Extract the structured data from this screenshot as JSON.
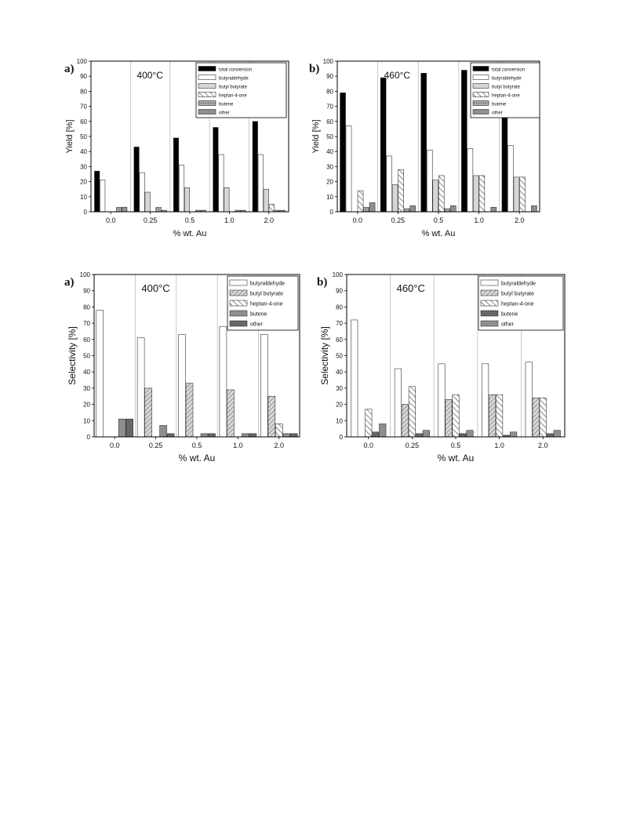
{
  "chart_data": [
    {
      "panel": "a)",
      "type": "bar",
      "annotation": "400°C",
      "xlabel": "% wt. Au",
      "ylabel": "Yield [%]",
      "ylim": [
        0,
        100
      ],
      "yticks": [
        0,
        10,
        20,
        30,
        40,
        50,
        60,
        70,
        80,
        90,
        100
      ],
      "categories": [
        "0.0",
        "0.25",
        "0.5",
        "1.0",
        "2.0"
      ],
      "legend_position": "top-right",
      "series": [
        {
          "name": "total conversion",
          "pattern": "black",
          "values": [
            27,
            43,
            49,
            56,
            60
          ]
        },
        {
          "name": "butyraldehyde",
          "pattern": "white",
          "values": [
            21,
            26,
            31,
            38,
            38
          ]
        },
        {
          "name": "butyl butyrate",
          "pattern": "lightgray",
          "values": [
            0,
            13,
            16,
            16,
            15
          ]
        },
        {
          "name": "heptan-4-one",
          "pattern": "hatch",
          "values": [
            0,
            0,
            0,
            0,
            5
          ]
        },
        {
          "name": "butene",
          "pattern": "dots",
          "values": [
            3,
            3,
            1,
            1,
            1
          ]
        },
        {
          "name": "other",
          "pattern": "gray",
          "values": [
            3,
            1,
            1,
            1,
            1
          ]
        }
      ]
    },
    {
      "panel": "b)",
      "type": "bar",
      "annotation": "460°C",
      "xlabel": "% wt. Au",
      "ylabel": "Yield [%]",
      "ylim": [
        0,
        100
      ],
      "yticks": [
        0,
        10,
        20,
        30,
        40,
        50,
        60,
        70,
        80,
        90,
        100
      ],
      "categories": [
        "0.0",
        "0.25",
        "0.5",
        "1.0",
        "2.0"
      ],
      "legend_position": "top-right",
      "series": [
        {
          "name": "total conversion",
          "pattern": "black",
          "values": [
            79,
            89,
            92,
            94,
            95
          ]
        },
        {
          "name": "butyraldehyde",
          "pattern": "white",
          "values": [
            57,
            37,
            41,
            42,
            44
          ]
        },
        {
          "name": "butyl butyrate",
          "pattern": "lightgray",
          "values": [
            0,
            18,
            21,
            24,
            23
          ]
        },
        {
          "name": "heptan-4-one",
          "pattern": "hatch",
          "values": [
            14,
            28,
            24,
            24,
            23
          ]
        },
        {
          "name": "butene",
          "pattern": "dots",
          "values": [
            3,
            2,
            2,
            0,
            0
          ]
        },
        {
          "name": "other",
          "pattern": "gray",
          "values": [
            6,
            4,
            4,
            3,
            4
          ]
        }
      ]
    },
    {
      "panel": "a)",
      "type": "bar",
      "annotation": "400°C",
      "xlabel": "% wt. Au",
      "ylabel": "Selectivity [%]",
      "ylim": [
        0,
        100
      ],
      "yticks": [
        0,
        10,
        20,
        30,
        40,
        50,
        60,
        70,
        80,
        90,
        100
      ],
      "categories": [
        "0.0",
        "0.25",
        "0.5",
        "1.0",
        "2.0"
      ],
      "legend_position": "top-right",
      "series": [
        {
          "name": "butyraldehyde",
          "pattern": "white",
          "values": [
            78,
            61,
            63,
            68,
            63
          ]
        },
        {
          "name": "butyl butyrate",
          "pattern": "diag",
          "values": [
            0,
            30,
            33,
            29,
            25
          ]
        },
        {
          "name": "heptan-4-one",
          "pattern": "hatch",
          "values": [
            0,
            0,
            0,
            0,
            8
          ]
        },
        {
          "name": "butene",
          "pattern": "gray",
          "values": [
            11,
            7,
            2,
            2,
            2
          ]
        },
        {
          "name": "other",
          "pattern": "cross",
          "values": [
            11,
            2,
            2,
            2,
            2
          ]
        }
      ]
    },
    {
      "panel": "b)",
      "type": "bar",
      "annotation": "460°C",
      "xlabel": "% wt. Au",
      "ylabel": "Selectivity [%]",
      "ylim": [
        0,
        100
      ],
      "yticks": [
        0,
        10,
        20,
        30,
        40,
        50,
        60,
        70,
        80,
        90,
        100
      ],
      "categories": [
        "0.0",
        "0.25",
        "0.5",
        "1.0",
        "2.0"
      ],
      "legend_position": "top-right",
      "series": [
        {
          "name": "butyraldehyde",
          "pattern": "white",
          "values": [
            72,
            42,
            45,
            45,
            46
          ]
        },
        {
          "name": "butyl butyrate",
          "pattern": "diag",
          "values": [
            0,
            20,
            23,
            26,
            24
          ]
        },
        {
          "name": "heptan-4-one",
          "pattern": "hatch",
          "values": [
            17,
            31,
            26,
            26,
            24
          ]
        },
        {
          "name": "butene",
          "pattern": "cross",
          "values": [
            3,
            2,
            2,
            1,
            2
          ]
        },
        {
          "name": "other",
          "pattern": "gray",
          "values": [
            8,
            4,
            4,
            3,
            4
          ]
        }
      ]
    }
  ]
}
